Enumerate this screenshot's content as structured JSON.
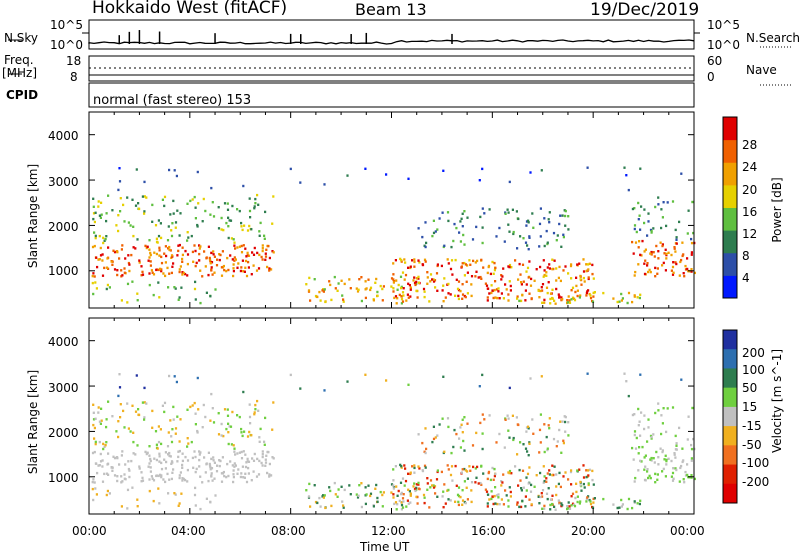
{
  "header": {
    "radar": "Hokkaido West (fitACF)",
    "beam": "Beam 13",
    "date": "19/Dec/2019"
  },
  "noise_panel": {
    "left_label_top": "N.Sky",
    "right_label": "N.Search",
    "tick_top": "10^5",
    "tick_bottom": "10^0"
  },
  "freq_panel": {
    "left_label_1": "Freq.",
    "left_label_2": "[MHz]",
    "left_tick_top": "18",
    "left_tick_bottom": "8",
    "right_label": "Nave",
    "right_tick_top": "60",
    "right_tick_bottom": "0"
  },
  "cpid": {
    "label": "CPID",
    "mode_text": "normal (fast stereo) 153"
  },
  "colors": {
    "power_scale": [
      "#0018ff",
      "#2d4fa8",
      "#2e7d4f",
      "#5fbf3f",
      "#e6d000",
      "#f0a000",
      "#f06000",
      "#e00000"
    ],
    "velocity_scale": [
      "#2030a0",
      "#2d6fb0",
      "#2e7d4f",
      "#6fcf3f",
      "#c0c0c0",
      "#f0b020",
      "#f07020",
      "#e02000",
      "#e00000"
    ]
  },
  "chart_data": [
    {
      "type": "heatmap",
      "name": "power",
      "ylabel": "Slant Range [km]",
      "yticks": [
        "1000",
        "2000",
        "3000",
        "4000"
      ],
      "ylim_km": [
        180,
        4500
      ],
      "colorbar_label": "Power [dB]",
      "colorbar_ticks": [
        "4",
        "8",
        "12",
        "16",
        "20",
        "24",
        "28"
      ],
      "colorbar_range": [
        0,
        32
      ]
    },
    {
      "type": "heatmap",
      "name": "velocity",
      "ylabel": "Slant Range [km]",
      "yticks": [
        "1000",
        "2000",
        "3000",
        "4000"
      ],
      "ylim_km": [
        180,
        4500
      ],
      "colorbar_label": "Velocity [m s^-1]",
      "colorbar_ticks": [
        "200",
        "100",
        "50",
        "15",
        "-15",
        "-50",
        "-100",
        "-200"
      ]
    }
  ],
  "x_axis": {
    "ticks": [
      "00:00",
      "04:00",
      "08:00",
      "12:00",
      "16:00",
      "20:00",
      "00:00"
    ],
    "label": "Time UT"
  }
}
